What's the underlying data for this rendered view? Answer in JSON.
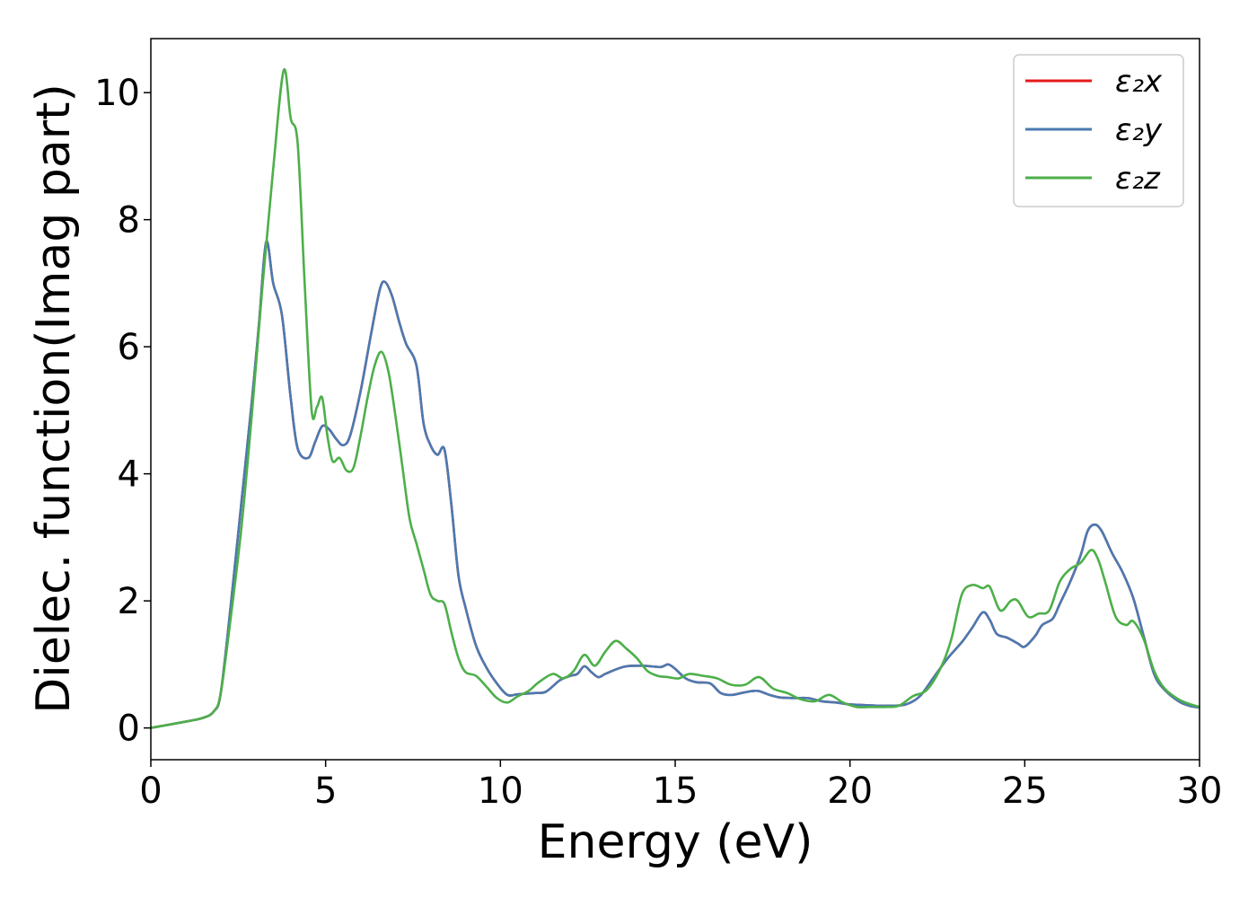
{
  "chart_data": {
    "type": "line",
    "title": "",
    "xlabel": "Energy (eV)",
    "ylabel": "Dielec. function(Imag part)",
    "xlim": [
      0,
      30
    ],
    "ylim": [
      -0.5,
      10.85
    ],
    "xticks": [
      0,
      5,
      10,
      15,
      20,
      25,
      30
    ],
    "yticks": [
      0,
      2,
      4,
      6,
      8,
      10
    ],
    "xtick_labels": [
      "0",
      "5",
      "10",
      "15",
      "20",
      "25",
      "30"
    ],
    "ytick_labels": [
      "0",
      "2",
      "4",
      "6",
      "8",
      "10"
    ],
    "grid": false,
    "legend_position": "top-right",
    "series": [
      {
        "name": "ε₂x",
        "color": "#e41a1c",
        "x": [
          0,
          1,
          1.5,
          1.8,
          2.0,
          2.3,
          2.6,
          2.9,
          3.1,
          3.3,
          3.5,
          3.75,
          4.0,
          4.2,
          4.5,
          4.7,
          4.9,
          5.1,
          5.3,
          5.5,
          5.7,
          6.0,
          6.3,
          6.55,
          6.7,
          6.9,
          7.1,
          7.3,
          7.6,
          7.8,
          8.0,
          8.2,
          8.4,
          8.6,
          8.8,
          9.0,
          9.3,
          9.6,
          9.9,
          10.2,
          10.5,
          11.0,
          11.3,
          11.7,
          12.0,
          12.2,
          12.4,
          12.6,
          12.8,
          13.0,
          13.3,
          13.6,
          14.0,
          14.3,
          14.6,
          14.8,
          15.0,
          15.3,
          15.6,
          16.0,
          16.3,
          16.6,
          16.9,
          17.2,
          17.4,
          17.7,
          18.0,
          18.4,
          18.8,
          19.2,
          19.6,
          20.0,
          20.4,
          20.8,
          21.2,
          21.6,
          22.0,
          22.4,
          22.8,
          23.2,
          23.5,
          23.8,
          24.0,
          24.2,
          24.5,
          24.8,
          25.0,
          25.3,
          25.5,
          25.8,
          26.0,
          26.3,
          26.6,
          26.8,
          27.0,
          27.2,
          27.5,
          27.8,
          28.1,
          28.4,
          28.7,
          29.0,
          29.4,
          29.7,
          30.0
        ],
        "y": [
          0.0,
          0.1,
          0.16,
          0.26,
          0.55,
          2.0,
          3.6,
          5.2,
          6.4,
          7.65,
          7.0,
          6.5,
          5.2,
          4.4,
          4.25,
          4.5,
          4.75,
          4.7,
          4.55,
          4.45,
          4.6,
          5.3,
          6.2,
          6.9,
          7.02,
          6.8,
          6.4,
          6.05,
          5.7,
          4.8,
          4.45,
          4.3,
          4.38,
          3.5,
          2.4,
          1.9,
          1.3,
          0.95,
          0.7,
          0.52,
          0.53,
          0.55,
          0.57,
          0.75,
          0.82,
          0.85,
          0.97,
          0.88,
          0.8,
          0.85,
          0.92,
          0.97,
          0.98,
          0.97,
          0.96,
          1.0,
          0.93,
          0.78,
          0.72,
          0.7,
          0.55,
          0.52,
          0.55,
          0.58,
          0.58,
          0.52,
          0.48,
          0.47,
          0.47,
          0.42,
          0.4,
          0.37,
          0.36,
          0.35,
          0.35,
          0.37,
          0.5,
          0.8,
          1.1,
          1.35,
          1.58,
          1.82,
          1.7,
          1.48,
          1.42,
          1.33,
          1.28,
          1.45,
          1.62,
          1.72,
          1.95,
          2.3,
          2.72,
          3.1,
          3.2,
          3.1,
          2.75,
          2.45,
          2.05,
          1.45,
          0.85,
          0.6,
          0.42,
          0.35,
          0.32
        ]
      },
      {
        "name": "ε₂y",
        "color": "#4a7ab2",
        "x": [
          0,
          1,
          1.5,
          1.8,
          2.0,
          2.3,
          2.6,
          2.9,
          3.1,
          3.3,
          3.5,
          3.75,
          4.0,
          4.2,
          4.5,
          4.7,
          4.9,
          5.1,
          5.3,
          5.5,
          5.7,
          6.0,
          6.3,
          6.55,
          6.7,
          6.9,
          7.1,
          7.3,
          7.6,
          7.8,
          8.0,
          8.2,
          8.4,
          8.6,
          8.8,
          9.0,
          9.3,
          9.6,
          9.9,
          10.2,
          10.5,
          11.0,
          11.3,
          11.7,
          12.0,
          12.2,
          12.4,
          12.6,
          12.8,
          13.0,
          13.3,
          13.6,
          14.0,
          14.3,
          14.6,
          14.8,
          15.0,
          15.3,
          15.6,
          16.0,
          16.3,
          16.6,
          16.9,
          17.2,
          17.4,
          17.7,
          18.0,
          18.4,
          18.8,
          19.2,
          19.6,
          20.0,
          20.4,
          20.8,
          21.2,
          21.6,
          22.0,
          22.4,
          22.8,
          23.2,
          23.5,
          23.8,
          24.0,
          24.2,
          24.5,
          24.8,
          25.0,
          25.3,
          25.5,
          25.8,
          26.0,
          26.3,
          26.6,
          26.8,
          27.0,
          27.2,
          27.5,
          27.8,
          28.1,
          28.4,
          28.7,
          29.0,
          29.4,
          29.7,
          30.0
        ],
        "y": [
          0.0,
          0.1,
          0.16,
          0.26,
          0.55,
          2.0,
          3.6,
          5.2,
          6.4,
          7.65,
          7.0,
          6.5,
          5.2,
          4.4,
          4.25,
          4.5,
          4.75,
          4.7,
          4.55,
          4.45,
          4.6,
          5.3,
          6.2,
          6.9,
          7.02,
          6.8,
          6.4,
          6.05,
          5.7,
          4.8,
          4.45,
          4.3,
          4.38,
          3.5,
          2.4,
          1.9,
          1.3,
          0.95,
          0.7,
          0.52,
          0.53,
          0.55,
          0.57,
          0.75,
          0.82,
          0.85,
          0.97,
          0.88,
          0.8,
          0.85,
          0.92,
          0.97,
          0.98,
          0.97,
          0.96,
          1.0,
          0.93,
          0.78,
          0.72,
          0.7,
          0.55,
          0.52,
          0.55,
          0.58,
          0.58,
          0.52,
          0.48,
          0.47,
          0.47,
          0.42,
          0.4,
          0.37,
          0.36,
          0.35,
          0.35,
          0.37,
          0.5,
          0.8,
          1.1,
          1.35,
          1.58,
          1.82,
          1.7,
          1.48,
          1.42,
          1.33,
          1.28,
          1.45,
          1.62,
          1.72,
          1.95,
          2.3,
          2.72,
          3.1,
          3.2,
          3.1,
          2.75,
          2.45,
          2.05,
          1.45,
          0.85,
          0.6,
          0.42,
          0.35,
          0.32
        ]
      },
      {
        "name": "ε₂z",
        "color": "#4daf4a",
        "x": [
          0,
          1,
          1.5,
          1.8,
          2.0,
          2.3,
          2.6,
          2.9,
          3.2,
          3.5,
          3.8,
          4.0,
          4.2,
          4.4,
          4.6,
          4.75,
          4.9,
          5.05,
          5.2,
          5.4,
          5.6,
          5.8,
          6.0,
          6.2,
          6.4,
          6.6,
          6.8,
          7.0,
          7.2,
          7.4,
          7.6,
          7.8,
          8.0,
          8.2,
          8.4,
          8.6,
          8.8,
          9.0,
          9.3,
          9.6,
          9.9,
          10.2,
          10.5,
          10.8,
          11.1,
          11.5,
          11.8,
          12.1,
          12.4,
          12.7,
          13.0,
          13.3,
          13.6,
          13.9,
          14.2,
          14.5,
          14.8,
          15.1,
          15.4,
          15.8,
          16.2,
          16.6,
          17.0,
          17.4,
          17.8,
          18.2,
          18.6,
          19.0,
          19.4,
          19.8,
          20.2,
          20.6,
          21.0,
          21.4,
          21.8,
          22.2,
          22.6,
          22.9,
          23.2,
          23.5,
          23.8,
          24.0,
          24.3,
          24.6,
          24.8,
          25.1,
          25.4,
          25.7,
          26.0,
          26.3,
          26.6,
          26.9,
          27.1,
          27.3,
          27.6,
          27.9,
          28.1,
          28.4,
          28.7,
          29.0,
          29.4,
          29.7,
          30.0
        ],
        "y": [
          0.0,
          0.1,
          0.16,
          0.26,
          0.55,
          1.8,
          3.2,
          5.0,
          7.0,
          8.8,
          10.35,
          9.6,
          9.2,
          7.0,
          5.0,
          5.05,
          5.2,
          4.6,
          4.2,
          4.25,
          4.05,
          4.1,
          4.6,
          5.2,
          5.7,
          5.92,
          5.6,
          4.9,
          4.1,
          3.3,
          2.9,
          2.5,
          2.1,
          2.0,
          1.95,
          1.5,
          1.1,
          0.88,
          0.82,
          0.65,
          0.47,
          0.4,
          0.5,
          0.58,
          0.72,
          0.85,
          0.78,
          0.9,
          1.15,
          0.98,
          1.2,
          1.37,
          1.25,
          1.1,
          0.9,
          0.82,
          0.8,
          0.78,
          0.85,
          0.82,
          0.78,
          0.68,
          0.68,
          0.8,
          0.62,
          0.55,
          0.45,
          0.42,
          0.52,
          0.4,
          0.33,
          0.33,
          0.33,
          0.35,
          0.5,
          0.6,
          0.95,
          1.4,
          2.1,
          2.25,
          2.2,
          2.22,
          1.85,
          2.0,
          2.0,
          1.75,
          1.8,
          1.85,
          2.3,
          2.5,
          2.6,
          2.8,
          2.65,
          2.3,
          1.75,
          1.62,
          1.68,
          1.4,
          0.9,
          0.62,
          0.45,
          0.38,
          0.33
        ]
      }
    ]
  }
}
